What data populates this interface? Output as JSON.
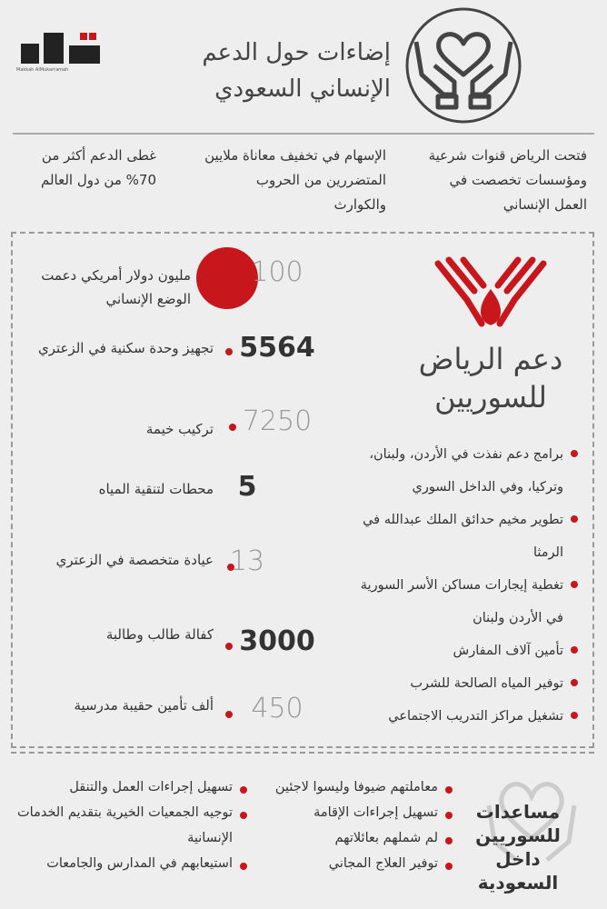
{
  "header": {
    "logo": "مكة",
    "logo_sub": "Makkah AlMukarramah",
    "title_lines": [
      "إضاءات حول الدعم",
      "الإنساني السعودي"
    ]
  },
  "facts": [
    "فتحت الرياض قنوات شرعية ومؤسسات تخصصت في العمل الإنساني",
    "الإسهام في تخفيف معاناة ملايين المتضررين من الحروب والكوارث",
    "غطى الدعم أكثر من 70% من دول العالم"
  ],
  "syria": {
    "logo_lines": [
      "دعم الرياض",
      "للسوريين"
    ],
    "bullets": [
      "برامج دعم نفذت في الأردن، ولبنان، وتركيا، وفي الداخل السوري",
      "تطوير مخيم حدائق الملك عبدالله في الرمثا",
      "تغطية إيجارات مساكن الأسر السورية في الأردن ولبنان",
      "تأمين آلاف المفارش",
      "توفير المياه الصالحة للشرب",
      "تشغيل مراكز التدريب الاجتماعي"
    ],
    "stats": [
      {
        "number": "100",
        "text": "مليون دولار أمريكي دعمت الوضع الإنساني"
      },
      {
        "number": "5564",
        "text": "تجهيز وحدة سكنية في الزعتري"
      },
      {
        "number": "7250",
        "text": "تركيب خيمة"
      },
      {
        "number": "5",
        "text": "محطات لتنقية المياه"
      },
      {
        "number": "13",
        "text": "عيادة متخصصة في الزعتري"
      },
      {
        "number": "3000",
        "text": "كفالة طالب وطالبة"
      },
      {
        "number": "450",
        "text": "ألف تأمين حقيبة مدرسية"
      }
    ]
  },
  "inside": {
    "title_lines": [
      "مساعدات",
      "للسوريين داخل",
      "السعودية"
    ],
    "list_a": [
      "معاملتهم ضيوفا وليسوا لاجئين",
      "تسهيل إجراءات الإقامة",
      "لم شملهم بعائلاتهم",
      "توفير العلاج المجاني"
    ],
    "list_b": [
      "تسهيل إجراءات العمل والتنقل",
      "توجيه الجمعيات الخيرية بتقديم الخدمات الإنسانية",
      "استيعابهم في المدارس والجامعات"
    ]
  }
}
